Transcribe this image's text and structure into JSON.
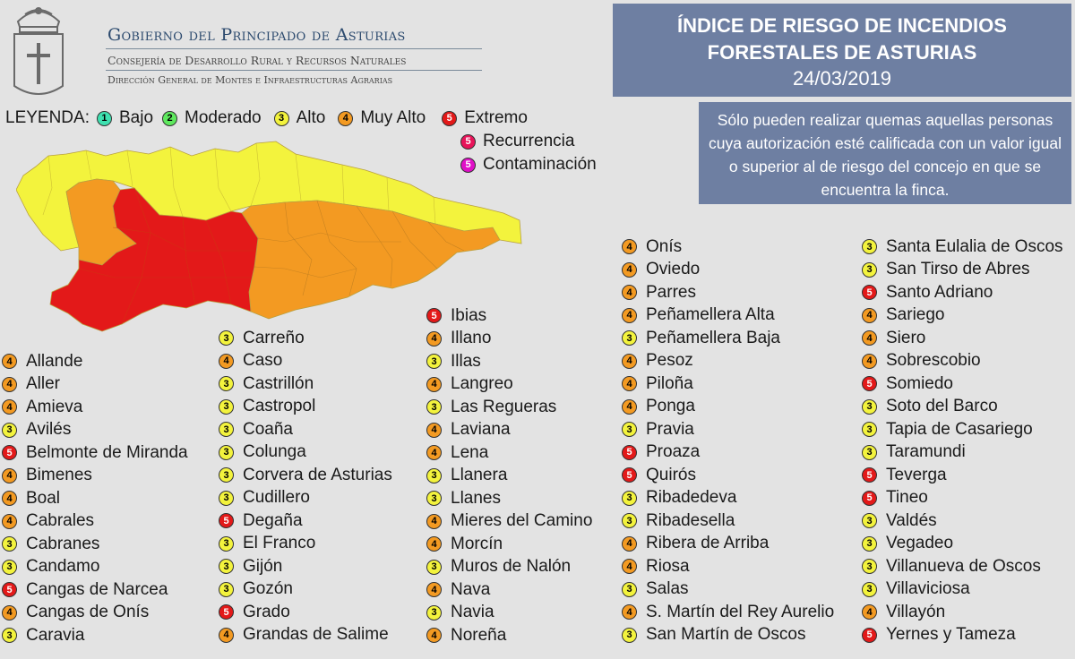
{
  "header": {
    "gov_line1": "Gobierno del Principado de Asturias",
    "gov_line2": "Consejería de Desarrollo Rural y Recursos Naturales",
    "gov_line3": "Dirección General de Montes e Infraestructuras Agrarias",
    "title_line1": "ÍNDICE DE RIESGO DE INCENDIOS",
    "title_line2": "FORESTALES DE ASTURIAS",
    "date": "24/03/2019",
    "note": "Sólo pueden realizar quemas aquellas personas cuya autorización esté calificada con un valor igual o superior al de riesgo del concejo en que se encuentra la finca."
  },
  "legend": {
    "label": "LEYENDA:",
    "items": [
      {
        "badge": "1",
        "label": "Bajo",
        "color": "#3ee0b0"
      },
      {
        "badge": "2",
        "label": "Moderado",
        "color": "#5ee85e"
      },
      {
        "badge": "3",
        "label": "Alto",
        "color": "#f3f33d"
      },
      {
        "badge": "4",
        "label": "Muy Alto",
        "color": "#f39a22"
      },
      {
        "badge": "5",
        "label": "Extremo",
        "color": "#e31919"
      },
      {
        "badge": "5",
        "label": "Recurrencia",
        "color": "#e8145a"
      },
      {
        "badge": "5",
        "label": "Contaminación",
        "color": "#e010c8"
      }
    ]
  },
  "map": {
    "zones": [
      {
        "level": 3,
        "color": "#f3f33d"
      },
      {
        "level": 4,
        "color": "#f39a22"
      },
      {
        "level": 5,
        "color": "#e31919"
      }
    ]
  },
  "municipalities": [
    {
      "name": "Allande",
      "level": 4
    },
    {
      "name": "Aller",
      "level": 4
    },
    {
      "name": "Amieva",
      "level": 4
    },
    {
      "name": "Avilés",
      "level": 3
    },
    {
      "name": "Belmonte de Miranda",
      "level": 5
    },
    {
      "name": "Bimenes",
      "level": 4
    },
    {
      "name": "Boal",
      "level": 4
    },
    {
      "name": "Cabrales",
      "level": 4
    },
    {
      "name": "Cabranes",
      "level": 3
    },
    {
      "name": "Candamo",
      "level": 3
    },
    {
      "name": "Cangas de Narcea",
      "level": 5
    },
    {
      "name": "Cangas de Onís",
      "level": 4
    },
    {
      "name": "Caravia",
      "level": 3
    },
    {
      "name": "Carreño",
      "level": 3
    },
    {
      "name": "Caso",
      "level": 4
    },
    {
      "name": "Castrillón",
      "level": 3
    },
    {
      "name": "Castropol",
      "level": 3
    },
    {
      "name": "Coaña",
      "level": 3
    },
    {
      "name": "Colunga",
      "level": 3
    },
    {
      "name": "Corvera de Asturias",
      "level": 3
    },
    {
      "name": "Cudillero",
      "level": 3
    },
    {
      "name": "Degaña",
      "level": 5
    },
    {
      "name": "El Franco",
      "level": 3
    },
    {
      "name": "Gijón",
      "level": 3
    },
    {
      "name": "Gozón",
      "level": 3
    },
    {
      "name": "Grado",
      "level": 5
    },
    {
      "name": "Grandas de Salime",
      "level": 4
    },
    {
      "name": "Ibias",
      "level": 5
    },
    {
      "name": "Illano",
      "level": 4
    },
    {
      "name": "Illas",
      "level": 3
    },
    {
      "name": "Langreo",
      "level": 4
    },
    {
      "name": "Las Regueras",
      "level": 3
    },
    {
      "name": "Laviana",
      "level": 4
    },
    {
      "name": "Lena",
      "level": 4
    },
    {
      "name": "Llanera",
      "level": 3
    },
    {
      "name": "Llanes",
      "level": 3
    },
    {
      "name": "Mieres del Camino",
      "level": 4
    },
    {
      "name": "Morcín",
      "level": 4
    },
    {
      "name": "Muros de Nalón",
      "level": 3
    },
    {
      "name": "Nava",
      "level": 4
    },
    {
      "name": "Navia",
      "level": 3
    },
    {
      "name": "Noreña",
      "level": 4
    },
    {
      "name": "Onís",
      "level": 4
    },
    {
      "name": "Oviedo",
      "level": 4
    },
    {
      "name": "Parres",
      "level": 4
    },
    {
      "name": "Peñamellera Alta",
      "level": 4
    },
    {
      "name": "Peñamellera Baja",
      "level": 3
    },
    {
      "name": "Pesoz",
      "level": 4
    },
    {
      "name": "Piloña",
      "level": 4
    },
    {
      "name": "Ponga",
      "level": 4
    },
    {
      "name": "Pravia",
      "level": 3
    },
    {
      "name": "Proaza",
      "level": 5
    },
    {
      "name": "Quirós",
      "level": 5
    },
    {
      "name": "Ribadedeva",
      "level": 3
    },
    {
      "name": "Ribadesella",
      "level": 3
    },
    {
      "name": "Ribera de Arriba",
      "level": 4
    },
    {
      "name": "Riosa",
      "level": 4
    },
    {
      "name": "Salas",
      "level": 3
    },
    {
      "name": "S. Martín del Rey Aurelio",
      "level": 4
    },
    {
      "name": "San Martín de Oscos",
      "level": 3
    },
    {
      "name": "Santa Eulalia de Oscos",
      "level": 3
    },
    {
      "name": "San Tirso de Abres",
      "level": 3
    },
    {
      "name": "Santo Adriano",
      "level": 5
    },
    {
      "name": "Sariego",
      "level": 4
    },
    {
      "name": "Siero",
      "level": 4
    },
    {
      "name": "Sobrescobio",
      "level": 4
    },
    {
      "name": "Somiedo",
      "level": 5
    },
    {
      "name": "Soto del Barco",
      "level": 3
    },
    {
      "name": "Tapia de Casariego",
      "level": 3
    },
    {
      "name": "Taramundi",
      "level": 3
    },
    {
      "name": "Teverga",
      "level": 5
    },
    {
      "name": "Tineo",
      "level": 5
    },
    {
      "name": "Valdés",
      "level": 3
    },
    {
      "name": "Vegadeo",
      "level": 3
    },
    {
      "name": "Villanueva de Oscos",
      "level": 3
    },
    {
      "name": "Villaviciosa",
      "level": 3
    },
    {
      "name": "Villayón",
      "level": 4
    },
    {
      "name": "Yernes y Tameza",
      "level": 5
    }
  ]
}
